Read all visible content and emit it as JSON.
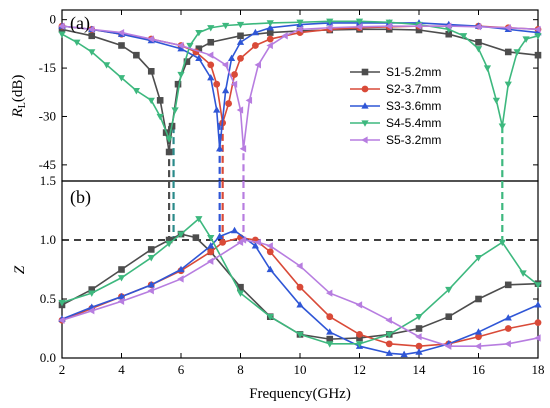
{
  "chart_data": [
    {
      "type": "line",
      "panel_label": "(a)",
      "xlabel": "",
      "ylabel_main": "R",
      "ylabel_sub": "L",
      "ylabel_unit": "(dB)",
      "xlim": [
        2,
        18
      ],
      "ylim": [
        -50,
        3
      ],
      "yticks": [
        0,
        -15,
        -30,
        -45
      ],
      "ytick_labels": [
        "0",
        "-15",
        "-30",
        "-45"
      ],
      "legend_position": "right",
      "series": [
        {
          "name": "S1-5.2mm",
          "color": "#4d4d4d",
          "marker": "square",
          "x": [
            2,
            3,
            4,
            4.5,
            5,
            5.3,
            5.5,
            5.6,
            5.7,
            5.9,
            6.2,
            6.6,
            7,
            8,
            9,
            10,
            11,
            12,
            13,
            14,
            15,
            16,
            17,
            18
          ],
          "y": [
            -3,
            -5,
            -8,
            -11,
            -16,
            -25,
            -35,
            -41,
            -33,
            -20,
            -13,
            -9,
            -7,
            -5,
            -4,
            -3.5,
            -3.2,
            -3,
            -3,
            -3.2,
            -4.5,
            -7,
            -10,
            -11
          ]
        },
        {
          "name": "S2-3.7mm",
          "color": "#d94a38",
          "marker": "circle",
          "x": [
            2,
            3,
            4,
            5,
            6,
            6.5,
            7,
            7.2,
            7.4,
            7.6,
            7.8,
            8,
            8.5,
            9,
            10,
            11,
            12,
            13,
            14,
            15,
            16,
            17,
            18
          ],
          "y": [
            -2,
            -3,
            -4.5,
            -6,
            -8,
            -10,
            -14,
            -20,
            -32,
            -26,
            -17,
            -12,
            -8,
            -6,
            -4,
            -3,
            -2.5,
            -2.2,
            -2,
            -2,
            -2,
            -2.5,
            -3
          ]
        },
        {
          "name": "S3-3.6mm",
          "color": "#2f56d6",
          "marker": "triangle-up",
          "x": [
            2,
            3,
            4,
            5,
            6,
            6.6,
            7,
            7.2,
            7.3,
            7.5,
            7.7,
            8,
            8.5,
            9,
            10,
            11,
            12,
            13,
            14,
            15,
            16,
            17,
            18
          ],
          "y": [
            -2,
            -3,
            -4.5,
            -6.5,
            -9,
            -12,
            -18,
            -28,
            -40,
            -22,
            -12,
            -7,
            -4,
            -2.5,
            -1.5,
            -1,
            -1,
            -1,
            -1,
            -1.5,
            -2,
            -3,
            -4
          ]
        },
        {
          "name": "S4-5.4mm",
          "color": "#3db87e",
          "marker": "triangle-down",
          "x": [
            2,
            2.5,
            3,
            3.5,
            4,
            4.5,
            5,
            5.3,
            5.6,
            5.8,
            6,
            6.3,
            6.6,
            7,
            7.5,
            8,
            9,
            10,
            11,
            12,
            13,
            14,
            15,
            15.5,
            16,
            16.3,
            16.6,
            16.8,
            17,
            17.3,
            17.6,
            18
          ],
          "y": [
            -4.5,
            -7,
            -10,
            -14,
            -18,
            -22,
            -25,
            -30,
            -37,
            -28,
            -17,
            -8,
            -4,
            -2.5,
            -1.8,
            -1.5,
            -1,
            -0.8,
            -0.5,
            -0.5,
            -0.8,
            -1.5,
            -3,
            -5,
            -9,
            -15,
            -25,
            -33,
            -20,
            -10,
            -6,
            -5
          ]
        },
        {
          "name": "S5-3.2mm",
          "color": "#b77de0",
          "marker": "triangle-left",
          "x": [
            2,
            3,
            4,
            5,
            6,
            7,
            7.5,
            7.8,
            8,
            8.1,
            8.3,
            8.6,
            9,
            9.5,
            10,
            11,
            12,
            13,
            14,
            15,
            16,
            17,
            18
          ],
          "y": [
            -2,
            -3,
            -4,
            -6,
            -8,
            -11,
            -14,
            -20,
            -28,
            -40,
            -25,
            -14,
            -8,
            -5,
            -3,
            -2.5,
            -2.2,
            -2,
            -2,
            -2,
            -2.2,
            -2.5,
            -3
          ]
        }
      ]
    },
    {
      "type": "line",
      "panel_label": "(b)",
      "xlabel": "Frequency(GHz)",
      "ylabel": "Z",
      "xlim": [
        2,
        18
      ],
      "ylim": [
        0,
        1.5
      ],
      "xticks": [
        2,
        4,
        6,
        8,
        10,
        12,
        14,
        16,
        18
      ],
      "xtick_labels": [
        "2",
        "4",
        "6",
        "8",
        "10",
        "12",
        "14",
        "16",
        "18"
      ],
      "yticks": [
        0.0,
        0.5,
        1.0,
        1.5
      ],
      "ytick_labels": [
        "0.0",
        "0.5",
        "1.0",
        "1.5"
      ],
      "reference_line": 1.0,
      "series": [
        {
          "name": "S1-5.2mm",
          "color": "#4d4d4d",
          "marker": "square",
          "x": [
            2,
            3,
            4,
            5,
            5.6,
            6,
            6.5,
            7,
            8,
            9,
            10,
            11,
            12,
            13,
            14,
            15,
            16,
            17,
            18
          ],
          "y": [
            0.45,
            0.58,
            0.75,
            0.92,
            1.0,
            1.05,
            1.02,
            0.9,
            0.6,
            0.35,
            0.2,
            0.16,
            0.17,
            0.2,
            0.25,
            0.35,
            0.5,
            0.62,
            0.63
          ]
        },
        {
          "name": "S2-3.7mm",
          "color": "#d94a38",
          "marker": "circle",
          "x": [
            2,
            3,
            4,
            5,
            6,
            7,
            7.4,
            8,
            8.5,
            9,
            10,
            11,
            12,
            13,
            14,
            15,
            16,
            17,
            18
          ],
          "y": [
            0.32,
            0.42,
            0.52,
            0.62,
            0.74,
            0.9,
            0.98,
            1.02,
            1.0,
            0.9,
            0.6,
            0.35,
            0.2,
            0.12,
            0.1,
            0.12,
            0.18,
            0.25,
            0.3
          ]
        },
        {
          "name": "S3-3.6mm",
          "color": "#2f56d6",
          "marker": "triangle-up",
          "x": [
            2,
            3,
            4,
            5,
            6,
            7,
            7.3,
            7.8,
            8.5,
            9,
            10,
            11,
            12,
            13,
            13.5,
            14,
            15,
            16,
            17,
            18
          ],
          "y": [
            0.33,
            0.43,
            0.52,
            0.62,
            0.75,
            0.95,
            1.03,
            1.08,
            0.95,
            0.75,
            0.45,
            0.22,
            0.1,
            0.04,
            0.03,
            0.05,
            0.12,
            0.22,
            0.34,
            0.45
          ]
        },
        {
          "name": "S4-5.4mm",
          "color": "#3db87e",
          "marker": "triangle-down",
          "x": [
            2,
            3,
            4,
            5,
            5.6,
            6,
            6.6,
            7,
            8,
            9,
            10,
            11,
            12,
            13,
            14,
            15,
            16,
            16.8,
            17.5,
            18
          ],
          "y": [
            0.47,
            0.55,
            0.68,
            0.85,
            0.97,
            1.05,
            1.18,
            1.02,
            0.55,
            0.35,
            0.2,
            0.12,
            0.12,
            0.2,
            0.35,
            0.58,
            0.85,
            0.98,
            0.72,
            0.62
          ]
        },
        {
          "name": "S5-3.2mm",
          "color": "#b77de0",
          "marker": "triangle-left",
          "x": [
            2,
            3,
            4,
            5,
            6,
            7,
            8,
            8.1,
            8.6,
            9,
            10,
            11,
            12,
            13,
            14,
            15,
            16,
            17,
            18
          ],
          "y": [
            0.32,
            0.4,
            0.48,
            0.57,
            0.67,
            0.82,
            0.98,
            1.0,
            0.98,
            0.95,
            0.78,
            0.55,
            0.45,
            0.32,
            0.18,
            0.1,
            0.1,
            0.12,
            0.17
          ]
        }
      ],
      "drop_lines": [
        {
          "x": 5.6,
          "y": 1.0,
          "color": "#4d4d4d"
        },
        {
          "x": 5.75,
          "y": 1.0,
          "color": "#2a8a8a"
        },
        {
          "x": 7.3,
          "y": 1.0,
          "color": "#2f56d6"
        },
        {
          "x": 7.4,
          "y": 1.0,
          "color": "#d94a38"
        },
        {
          "x": 8.1,
          "y": 1.0,
          "color": "#b77de0"
        },
        {
          "x": 16.8,
          "y": 1.0,
          "color": "#3db87e"
        }
      ]
    }
  ]
}
